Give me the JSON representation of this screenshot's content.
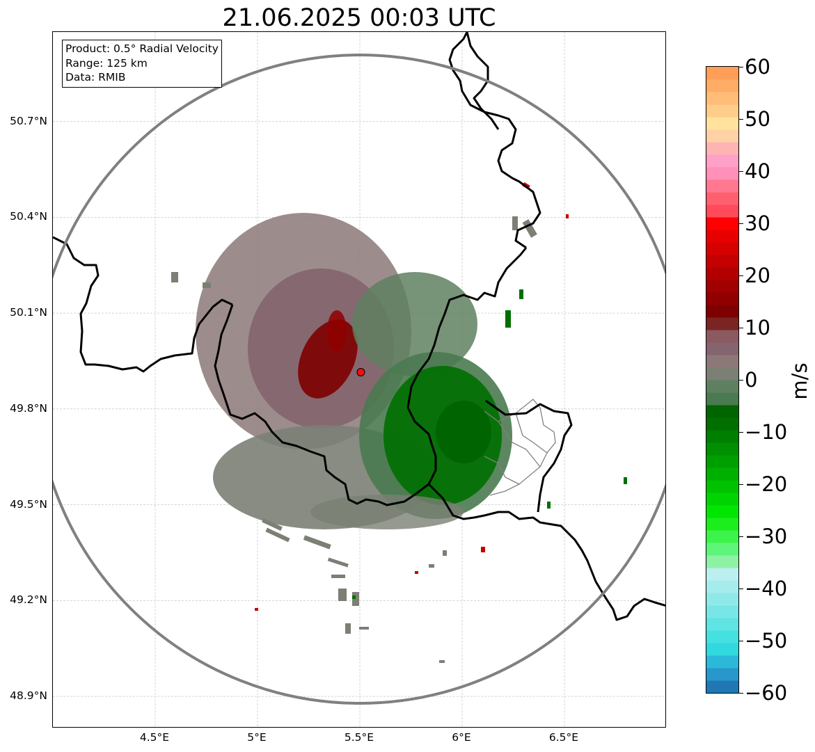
{
  "title": "21.06.2025 00:03 UTC",
  "info_box": {
    "line1": "Product: 0.5° Radial Velocity",
    "line2": "Range: 125 km",
    "line3": "Data: RMIB"
  },
  "map": {
    "extent": {
      "lon_min": 4.0,
      "lon_max": 7.0,
      "lat_min": 48.8,
      "lat_max": 50.98
    },
    "lat_ticks": [
      {
        "value": 50.7,
        "label": "50.7°N"
      },
      {
        "value": 50.4,
        "label": "50.4°N"
      },
      {
        "value": 50.1,
        "label": "50.1°N"
      },
      {
        "value": 49.8,
        "label": "49.8°N"
      },
      {
        "value": 49.5,
        "label": "49.5°N"
      },
      {
        "value": 49.2,
        "label": "49.2°N"
      },
      {
        "value": 48.9,
        "label": "48.9°N"
      }
    ],
    "lon_ticks": [
      {
        "value": 4.5,
        "label": "4.5°E"
      },
      {
        "value": 5.0,
        "label": "5°E"
      },
      {
        "value": 5.5,
        "label": "5.5°E"
      },
      {
        "value": 6.0,
        "label": "6°E"
      },
      {
        "value": 6.5,
        "label": "6.5°E"
      }
    ],
    "radar_site": {
      "lon": 5.505,
      "lat": 49.915
    },
    "range_ring_color": "#808080",
    "border_color": "#000000",
    "grid": true
  },
  "colorbar": {
    "label": "m/s",
    "min": -60,
    "max": 60,
    "ticks": [
      {
        "value": 60,
        "label": "60"
      },
      {
        "value": 50,
        "label": "50"
      },
      {
        "value": 40,
        "label": "40"
      },
      {
        "value": 30,
        "label": "30"
      },
      {
        "value": 20,
        "label": "20"
      },
      {
        "value": 10,
        "label": "10"
      },
      {
        "value": 0,
        "label": "0"
      },
      {
        "value": -10,
        "label": "−10"
      },
      {
        "value": -20,
        "label": "−20"
      },
      {
        "value": -30,
        "label": "−30"
      },
      {
        "value": -40,
        "label": "−40"
      },
      {
        "value": -50,
        "label": "−50"
      },
      {
        "value": -60,
        "label": "−60"
      }
    ],
    "colors": [
      "#1f78b4",
      "#2897cb",
      "#2cb8d8",
      "#30d9de",
      "#45e0e0",
      "#5fe3e3",
      "#78e6e6",
      "#90e9e9",
      "#a6ecec",
      "#bbeff0",
      "#8ef2a5",
      "#5df57a",
      "#3ef24c",
      "#1ced1c",
      "#00e600",
      "#00d400",
      "#00c200",
      "#00b000",
      "#009f00",
      "#008f00",
      "#007e00",
      "#006f00",
      "#006400",
      "#4a7a50",
      "#5f8060",
      "#7b7f74",
      "#8c7878",
      "#84646e",
      "#8b5a60",
      "#7a2424",
      "#7e0000",
      "#900000",
      "#a00000",
      "#b20000",
      "#c40000",
      "#d60000",
      "#e80000",
      "#ff0000",
      "#ff4a5a",
      "#ff6070",
      "#ff7890",
      "#ff90b8",
      "#ffa0c8",
      "#ffb4b4",
      "#ffd2a6",
      "#ffe29e",
      "#ffcd8a",
      "#ffbd78",
      "#ffad66",
      "#ff9e58"
    ]
  }
}
